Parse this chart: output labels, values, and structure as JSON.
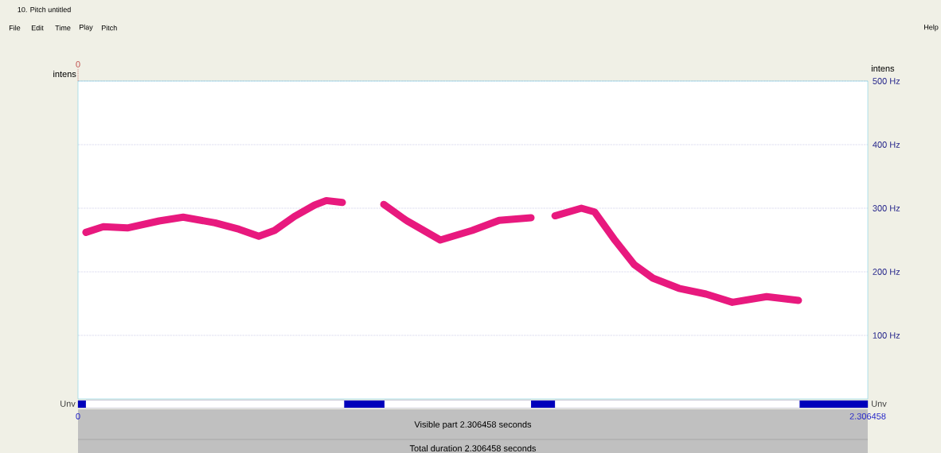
{
  "chart_data": [
    {
      "type": "line",
      "title": "10. Pitch untitled",
      "x": [
        0.023,
        0.074,
        0.144,
        0.237,
        0.307,
        0.4,
        0.47,
        0.528,
        0.574,
        0.632,
        0.691,
        0.725,
        0.772,
        0.83,
        0.893,
        0.958,
        1.058,
        1.151,
        1.23,
        1.323,
        1.36,
        1.393,
        1.47,
        1.509,
        1.569,
        1.625,
        1.679,
        1.755,
        1.834,
        1.911,
        2.011,
        2.104
      ],
      "series": [
        {
          "color": "#e8197e",
          "values": [
            262,
            271,
            269,
            280,
            286,
            277,
            267,
            256,
            265,
            287,
            305,
            312,
            309,
            null,
            306,
            281,
            250,
            265,
            281,
            285,
            null,
            288,
            300,
            294,
            249,
            211,
            190,
            174,
            165,
            152,
            161,
            155
          ]
        }
      ],
      "xlim": [
        0,
        2.306458
      ],
      "tick_labels": "y",
      "ylim": [
        0,
        500
      ],
      "yticks": [
        {
          "value": 100,
          "label": "100 Hz"
        },
        {
          "value": 200,
          "label": "200 Hz"
        },
        {
          "value": 300,
          "label": "300 Hz"
        },
        {
          "value": 400,
          "label": "400 Hz"
        },
        {
          "value": 500,
          "label": "500 Hz"
        }
      ],
      "grid": "y",
      "marker": "none",
      "line_style": "solid",
      "ref_lines": [
        {
          "axis": "x",
          "value": 0,
          "label": "0",
          "color": "#c0504d",
          "line_style": "dotted"
        }
      ],
      "annotations": [
        "File",
        "Edit",
        "Time",
        "Play",
        "Pitch",
        "Help",
        "intens",
        "intens"
      ]
    },
    {
      "type": "bar",
      "orientation": "horizontal",
      "stacked": true,
      "categories": [
        null
      ],
      "xlim": [
        0,
        2.306458
      ],
      "xticks": [
        0,
        2.306458
      ],
      "series": [
        {
          "color": "#0000bb",
          "values": [
            0.023
          ]
        },
        {
          "color": "#ffffff",
          "values": [
            0.754
          ]
        },
        {
          "color": "#0000bb",
          "values": [
            0.118
          ]
        },
        {
          "color": "#ffffff",
          "values": [
            0.428
          ]
        },
        {
          "color": "#0000bb",
          "values": [
            0.07
          ]
        },
        {
          "color": "#ffffff",
          "values": [
            0.714
          ]
        },
        {
          "color": "#0000bb",
          "values": [
            0.199458
          ]
        }
      ],
      "annotations": [
        "Unv",
        "Unv",
        "Visible part 2.306458 seconds",
        "Total duration 2.306458 seconds"
      ]
    }
  ]
}
